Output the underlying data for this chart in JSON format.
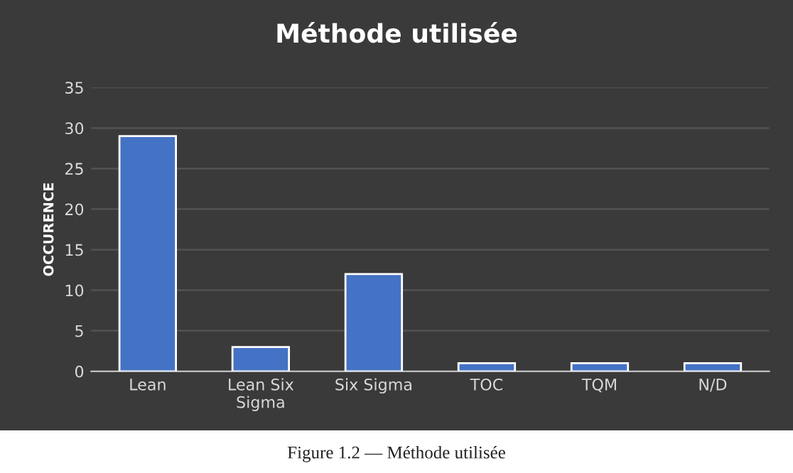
{
  "chart_data": {
    "type": "bar",
    "title": "Méthode utilisée",
    "ylabel": "OCCURENCE",
    "categories": [
      "Lean",
      "Lean Six\nSigma",
      "Six Sigma",
      "TOC",
      "TQM",
      "N/D"
    ],
    "values": [
      29,
      3,
      12,
      1,
      1,
      1
    ],
    "color": "#4472c4",
    "ylim": [
      0,
      35
    ],
    "yticks": [
      0,
      5,
      10,
      15,
      20,
      25,
      30,
      35
    ],
    "grid": "y",
    "annotations": [
      "Figure 1.2 — Méthode utilisée"
    ]
  }
}
